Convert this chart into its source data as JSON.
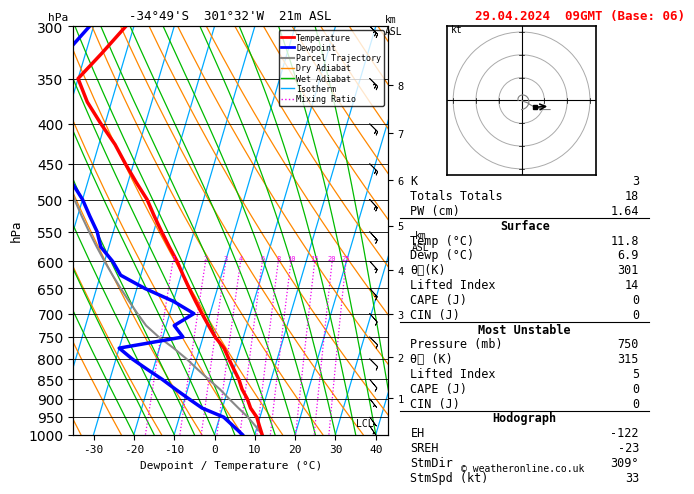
{
  "title_left": "-34°49'S  301°32'W  21m ASL",
  "title_right": "29.04.2024  09GMT (Base: 06)",
  "ylabel_left": "hPa",
  "xlabel": "Dewpoint / Temperature (°C)",
  "legend_entries": [
    {
      "label": "Temperature",
      "color": "#ff0000",
      "lw": 2,
      "ls": "-"
    },
    {
      "label": "Dewpoint",
      "color": "#0000ff",
      "lw": 2,
      "ls": "-"
    },
    {
      "label": "Parcel Trajectory",
      "color": "#888888",
      "lw": 1.5,
      "ls": "-"
    },
    {
      "label": "Dry Adiabat",
      "color": "#ff8800",
      "lw": 1,
      "ls": "-"
    },
    {
      "label": "Wet Adiabat",
      "color": "#00bb00",
      "lw": 1,
      "ls": "-"
    },
    {
      "label": "Isotherm",
      "color": "#00aaff",
      "lw": 1,
      "ls": "-"
    },
    {
      "label": "Mixing Ratio",
      "color": "#ee00ee",
      "lw": 1,
      "ls": ":"
    }
  ],
  "surface_data": {
    "K": 3,
    "Totals_Totals": 18,
    "PW_cm": 1.64,
    "Temp_C": 11.8,
    "Dewp_C": 6.9,
    "theta_e_K": 301,
    "Lifted_Index": 14,
    "CAPE_J": 0,
    "CIN_J": 0
  },
  "mu_data": {
    "Pressure_mb": 750,
    "theta_e_K": 315,
    "Lifted_Index": 5,
    "CAPE_J": 0,
    "CIN_J": 0
  },
  "hodograph_data": {
    "EH": -122,
    "SREH": -23,
    "StmDir_deg": 309,
    "StmSpd_kt": 33
  },
  "bg_color": "#ffffff",
  "isotherm_color": "#00aaff",
  "dry_adiabat_color": "#ff8800",
  "wet_adiabat_color": "#00bb00",
  "mixing_ratio_color": "#ee00ee",
  "temp_color": "#ff0000",
  "dewpoint_color": "#0000ff",
  "parcel_color": "#888888",
  "pmin": 300,
  "pmax": 1000,
  "tmin": -35,
  "tmax": 40,
  "skew": 30,
  "font": "monospace",
  "km_p_map": {
    "1": 899,
    "2": 795,
    "3": 701,
    "4": 616,
    "5": 540,
    "6": 472,
    "7": 411,
    "8": 357
  },
  "temp_p": [
    1000,
    975,
    950,
    925,
    900,
    875,
    850,
    825,
    800,
    775,
    750,
    725,
    700,
    675,
    650,
    625,
    600,
    575,
    550,
    525,
    500,
    475,
    450,
    425,
    400,
    375,
    350,
    325,
    300
  ],
  "temp_T": [
    11.8,
    10.5,
    9.2,
    7.0,
    5.5,
    3.5,
    2.0,
    0.0,
    -2.0,
    -4.0,
    -7.0,
    -9.5,
    -12.0,
    -14.5,
    -17.0,
    -19.5,
    -22.0,
    -25.0,
    -28.0,
    -31.0,
    -34.0,
    -38.0,
    -42.0,
    -46.0,
    -51.0,
    -56.0,
    -60.0,
    -56.0,
    -52.0
  ],
  "dew_p": [
    1000,
    975,
    950,
    925,
    900,
    875,
    850,
    825,
    800,
    775,
    750,
    725,
    700,
    675,
    650,
    625,
    600,
    575,
    550,
    525,
    500,
    475,
    450,
    425,
    400,
    375,
    350,
    325,
    300
  ],
  "dew_T": [
    6.9,
    4.0,
    1.0,
    -5.0,
    -9.0,
    -13.0,
    -17.0,
    -21.5,
    -26.0,
    -30.0,
    -15.0,
    -18.0,
    -14.0,
    -20.0,
    -28.0,
    -35.0,
    -38.0,
    -42.0,
    -44.0,
    -47.0,
    -50.0,
    -54.0,
    -57.0,
    -60.0,
    -63.0,
    -66.0,
    -69.0,
    -65.0,
    -61.0
  ],
  "parcel_p": [
    1000,
    975,
    950,
    925,
    900,
    875,
    850,
    825,
    800,
    775,
    750,
    725,
    700,
    675,
    650,
    625,
    600,
    575,
    550,
    525,
    500,
    475,
    450,
    425,
    400,
    375,
    350,
    325,
    300
  ],
  "parcel_T": [
    11.8,
    9.5,
    7.0,
    4.0,
    1.0,
    -2.0,
    -5.5,
    -9.0,
    -12.5,
    -16.5,
    -21.0,
    -25.0,
    -28.0,
    -31.0,
    -34.0,
    -37.0,
    -40.0,
    -43.0,
    -46.0,
    -49.0,
    -52.0,
    -55.0,
    -59.0,
    -62.0,
    -66.0,
    -70.0,
    -74.0,
    -78.0,
    -82.0
  ],
  "wind_p": [
    975,
    950,
    900,
    850,
    800,
    750,
    700,
    650,
    600,
    550,
    500,
    450,
    400,
    350,
    300
  ],
  "wind_u": [
    -2,
    -3,
    -4,
    -5,
    -7,
    -8,
    -8,
    -9,
    -10,
    -11,
    -12,
    -14,
    -15,
    -16,
    -17
  ],
  "wind_v": [
    3,
    4,
    5,
    6,
    7,
    8,
    9,
    10,
    11,
    12,
    13,
    14,
    15,
    16,
    17
  ],
  "mixing_ratios": [
    1,
    2,
    3,
    4,
    6,
    8,
    10,
    15,
    20,
    25
  ]
}
